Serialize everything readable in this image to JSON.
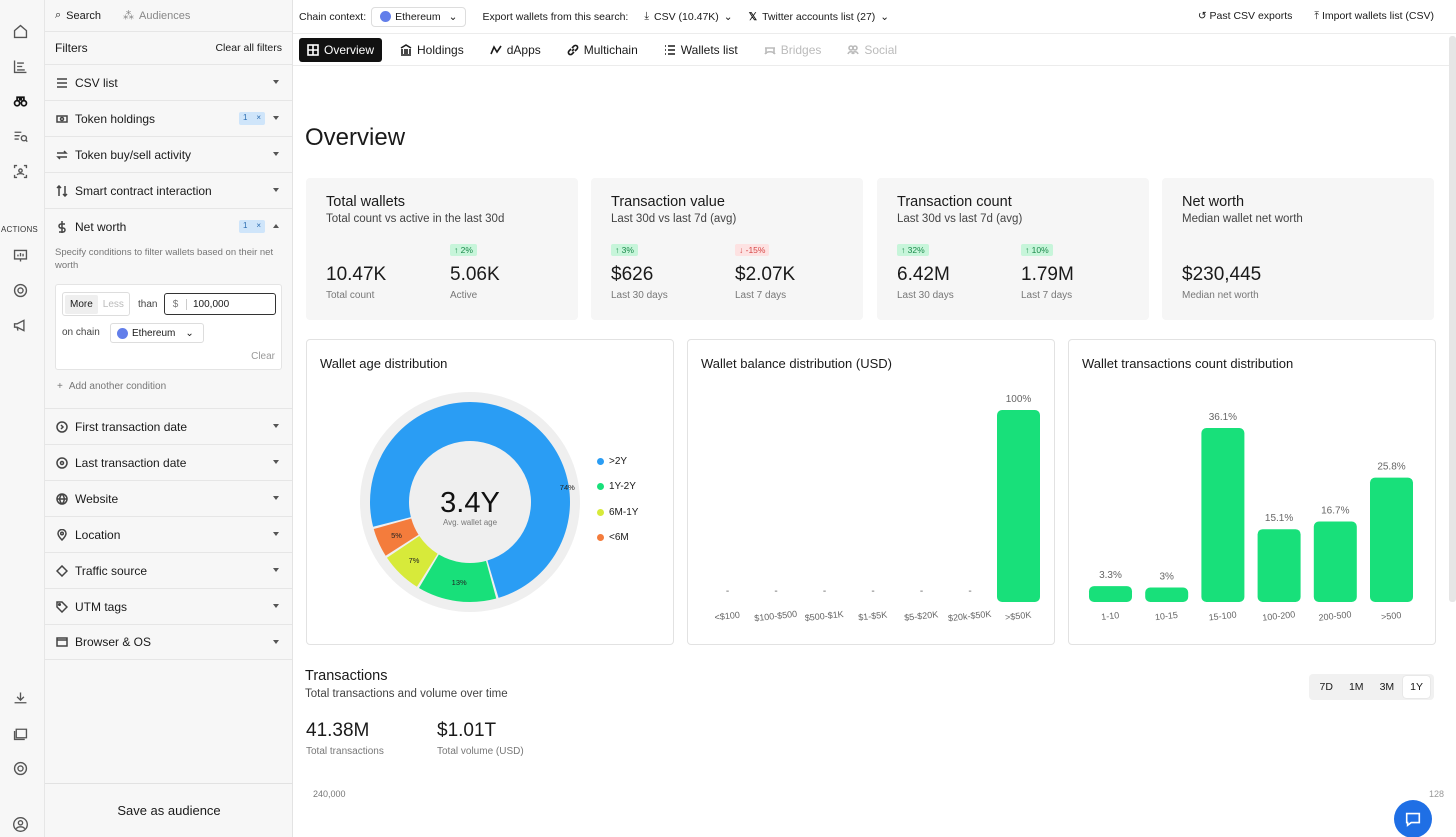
{
  "search": {
    "search_label": "Search",
    "audiences_label": "Audiences"
  },
  "rail": {
    "actions_label": "ACTIONS"
  },
  "filters": {
    "title": "Filters",
    "clear_all": "Clear all filters",
    "items": [
      {
        "label": "CSV list",
        "icon": "list-icon"
      },
      {
        "label": "Token holdings",
        "icon": "coins-icon",
        "badge": "1",
        "badge_x": "×"
      },
      {
        "label": "Token buy/sell activity",
        "icon": "swap-icon"
      },
      {
        "label": "Smart contract interaction",
        "icon": "sort-icon"
      },
      {
        "label": "Net worth",
        "icon": "dollar-icon",
        "badge": "1",
        "badge_x": "×"
      }
    ],
    "net_worth": {
      "description": "Specify conditions to filter wallets based on their net worth",
      "more": "More",
      "less": "Less",
      "than": "than",
      "currency": "$",
      "amount": "100,000",
      "on_chain": "on chain",
      "chain": "Ethereum",
      "clear": "Clear"
    },
    "add_condition": "Add another condition",
    "items2": [
      {
        "label": "First transaction date"
      },
      {
        "label": "Last transaction date"
      },
      {
        "label": "Website"
      },
      {
        "label": "Location"
      },
      {
        "label": "Traffic source"
      },
      {
        "label": "UTM tags"
      },
      {
        "label": "Browser & OS"
      }
    ],
    "save_audience": "Save as audience"
  },
  "topbar": {
    "chain_context_label": "Chain context:",
    "chain": "Ethereum",
    "export_label": "Export wallets from this search:",
    "csv": "CSV (10.47K)",
    "twitter": "Twitter accounts list (27)",
    "past_exports": "Past CSV exports",
    "import": "Import wallets list (CSV)"
  },
  "tabs": [
    "Overview",
    "Holdings",
    "dApps",
    "Multichain",
    "Wallets list",
    "Bridges",
    "Social"
  ],
  "page_title": "Overview",
  "kpis": [
    {
      "title": "Total wallets",
      "sub": "Total count vs active in the last 30d",
      "v1": "10.47K",
      "l1": "Total count",
      "c2": "↑ 2%",
      "v2": "5.06K",
      "l2": "Active"
    },
    {
      "title": "Transaction value",
      "sub": "Last 30d vs last 7d (avg)",
      "c1": "↑ 3%",
      "v1": "$626",
      "l1": "Last 30 days",
      "c2": "↓ -15%",
      "v2": "$2.07K",
      "l2": "Last 7 days"
    },
    {
      "title": "Transaction count",
      "sub": "Last 30d vs last 7d (avg)",
      "c1": "↑ 32%",
      "v1": "6.42M",
      "l1": "Last 30 days",
      "c2": "↑ 10%",
      "v2": "1.79M",
      "l2": "Last 7 days"
    },
    {
      "title": "Net worth",
      "sub": "Median wallet net worth",
      "v1": "$230,445",
      "l1": "Median net worth"
    }
  ],
  "chart_data": [
    {
      "type": "pie",
      "title": "Wallet age distribution",
      "center_value": "3.4Y",
      "center_label": "Avg. wallet age",
      "categories": [
        ">2Y",
        "1Y-2Y",
        "6M-1Y",
        "<6M"
      ],
      "values": [
        74,
        13,
        7,
        5
      ],
      "labels": [
        "74%",
        "13%",
        "7%",
        "5%"
      ],
      "colors": [
        "#2a9df4",
        "#18e07a",
        "#d7ea3a",
        "#f47c3c"
      ]
    },
    {
      "type": "bar",
      "title": "Wallet balance distribution (USD)",
      "categories": [
        "<$100",
        "$100-$500",
        "$500-$1K",
        "$1-$5K",
        "$5-$20K",
        "$20k-$50K",
        ">$50K"
      ],
      "values": [
        0,
        0,
        0,
        0,
        0,
        0,
        100
      ],
      "labels": [
        "-",
        "-",
        "-",
        "-",
        "-",
        "-",
        "100%"
      ],
      "ylim": [
        0,
        100
      ]
    },
    {
      "type": "bar",
      "title": "Wallet transactions count distribution",
      "categories": [
        "1-10",
        "10-15",
        "15-100",
        "100-200",
        "200-500",
        ">500"
      ],
      "values": [
        3.3,
        3,
        36.1,
        15.1,
        16.7,
        25.8
      ],
      "labels": [
        "3.3%",
        "3%",
        "36.1%",
        "15.1%",
        "16.7%",
        "25.8%"
      ],
      "ylim": [
        0,
        36.1
      ]
    }
  ],
  "transactions": {
    "title": "Transactions",
    "sub": "Total transactions and volume over time",
    "v1": "41.38M",
    "l1": "Total transactions",
    "v2": "$1.01T",
    "l2": "Total volume (USD)",
    "ranges": [
      "7D",
      "1M",
      "3M",
      "1Y"
    ],
    "selected_range": "1Y",
    "y_tick": "240,000",
    "y_tick_right": "128"
  },
  "colors": {
    "accent_green": "#18e07a",
    "dark": "#111111"
  }
}
